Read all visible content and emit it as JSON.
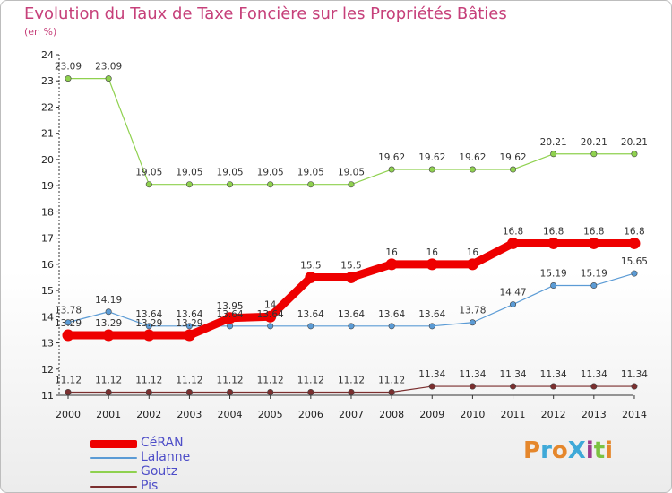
{
  "title": "Evolution du Taux de Taxe Foncière sur les Propriétés Bâties",
  "unit": "(en %)",
  "logo": {
    "text": "ProXiti",
    "colors": [
      "#e5872c",
      "#3fa9d8",
      "#e5872c",
      "#3fa9d8",
      "#9c3c8d",
      "#7cc242",
      "#e5872c"
    ]
  },
  "chart_data": {
    "type": "line",
    "title": "Evolution du Taux de Taxe Foncière sur les Propriétés Bâties",
    "ylabel": "(en %)",
    "xlabel": "",
    "x": [
      "2000",
      "2001",
      "2002",
      "2003",
      "2004",
      "2005",
      "2006",
      "2007",
      "2008",
      "2009",
      "2010",
      "2011",
      "2012",
      "2013",
      "2014"
    ],
    "ylim": [
      11,
      24
    ],
    "yticks": [
      "11",
      "12",
      "13",
      "14",
      "15",
      "16",
      "17",
      "18",
      "19",
      "20",
      "21",
      "22",
      "23",
      "24"
    ],
    "legend_position": "bottom-left",
    "series": [
      {
        "name": "CéRAN",
        "color": "#ee0000",
        "width": "thick",
        "values": [
          13.29,
          13.29,
          13.29,
          13.29,
          13.95,
          14,
          15.5,
          15.5,
          16,
          16,
          16,
          16.8,
          16.8,
          16.8,
          16.8
        ],
        "labels": [
          "13.29",
          "13.29",
          "13.29",
          "13.29",
          "13.95",
          "14",
          "15.5",
          "15.5",
          "16",
          "16",
          "16",
          "16.8",
          "16.8",
          "16.8",
          "16.8"
        ]
      },
      {
        "name": "Lalanne",
        "color": "#5b9bd5",
        "width": "thin",
        "values": [
          13.78,
          14.19,
          13.64,
          13.64,
          13.64,
          13.64,
          13.64,
          13.64,
          13.64,
          13.64,
          13.78,
          14.47,
          15.19,
          15.19,
          15.65
        ],
        "labels": [
          "13.78",
          "14.19",
          "13.64",
          "13.64",
          "13.64",
          "13.64",
          "13.64",
          "13.64",
          "13.64",
          "13.64",
          "13.78",
          "14.47",
          "15.19",
          "15.19",
          "15.65"
        ]
      },
      {
        "name": "Goutz",
        "color": "#8fd14f",
        "width": "thin",
        "values": [
          23.09,
          23.09,
          19.05,
          19.05,
          19.05,
          19.05,
          19.05,
          19.05,
          19.62,
          19.62,
          19.62,
          19.62,
          20.21,
          20.21,
          20.21
        ],
        "labels": [
          "23.09",
          "23.09",
          "19.05",
          "19.05",
          "19.05",
          "19.05",
          "19.05",
          "19.05",
          "19.62",
          "19.62",
          "19.62",
          "19.62",
          "20.21",
          "20.21",
          "20.21"
        ]
      },
      {
        "name": "Pis",
        "color": "#7b2f2f",
        "width": "thin",
        "values": [
          11.12,
          11.12,
          11.12,
          11.12,
          11.12,
          11.12,
          11.12,
          11.12,
          11.12,
          11.34,
          11.34,
          11.34,
          11.34,
          11.34,
          11.34
        ],
        "labels": [
          "11.12",
          "11.12",
          "11.12",
          "11.12",
          "11.12",
          "11.12",
          "11.12",
          "11.12",
          "11.12",
          "11.34",
          "11.34",
          "11.34",
          "11.34",
          "11.34",
          "11.34"
        ]
      }
    ]
  }
}
